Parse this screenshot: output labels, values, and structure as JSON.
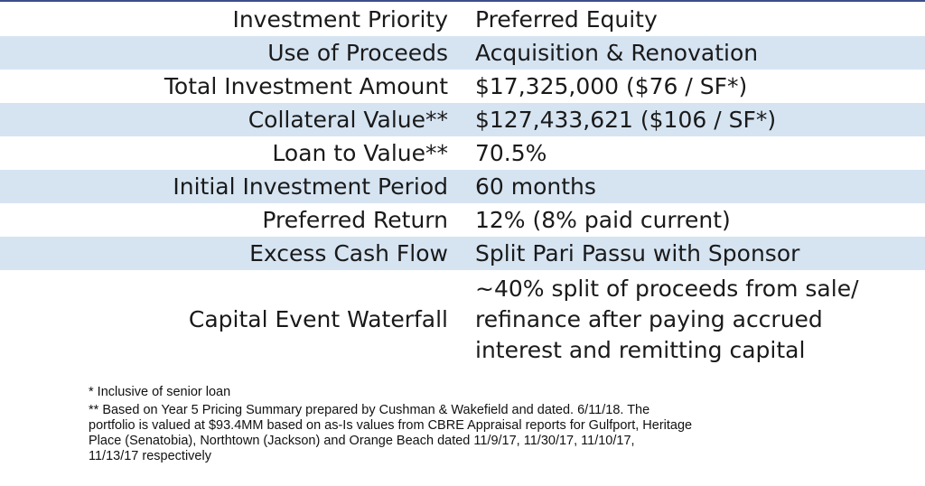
{
  "terms": [
    {
      "label": "Investment Priority",
      "value": "Preferred Equity"
    },
    {
      "label": "Use of Proceeds",
      "value": "Acquisition & Renovation"
    },
    {
      "label": "Total Investment Amount",
      "value": "$17,325,000 ($76 / SF*)"
    },
    {
      "label": "Collateral Value**",
      "value": "$127,433,621 ($106 / SF*)"
    },
    {
      "label": "Loan to Value**",
      "value": "70.5%"
    },
    {
      "label": "Initial Investment Period",
      "value": "60 months"
    },
    {
      "label": "Preferred Return",
      "value": "12% (8% paid current)"
    },
    {
      "label": "Excess Cash Flow",
      "value": "Split Pari Passu with Sponsor"
    },
    {
      "label": "Capital Event Waterfall",
      "value_lines": [
        "~40% split of proceeds from sale/",
        "refinance after paying accrued",
        "interest and remitting capital"
      ]
    }
  ],
  "footnotes": {
    "single_star": "*  Inclusive of senior loan",
    "double_star_lines": [
      "** Based on Year 5 Pricing Summary prepared by Cushman & Wakefield and dated. 6/11/18. The",
      "portfolio is valued at $93.4MM based on as-Is  values from CBRE Appraisal reports for Gulfport, Heritage",
      "Place (Senatobia), Northtown (Jackson) and Orange Beach dated  11/9/17,  11/30/17, 11/10/17,",
      "11/13/17 respectively"
    ]
  },
  "colors": {
    "row_shade": "#d6e4f2",
    "top_rule": "#3c4f8a"
  }
}
